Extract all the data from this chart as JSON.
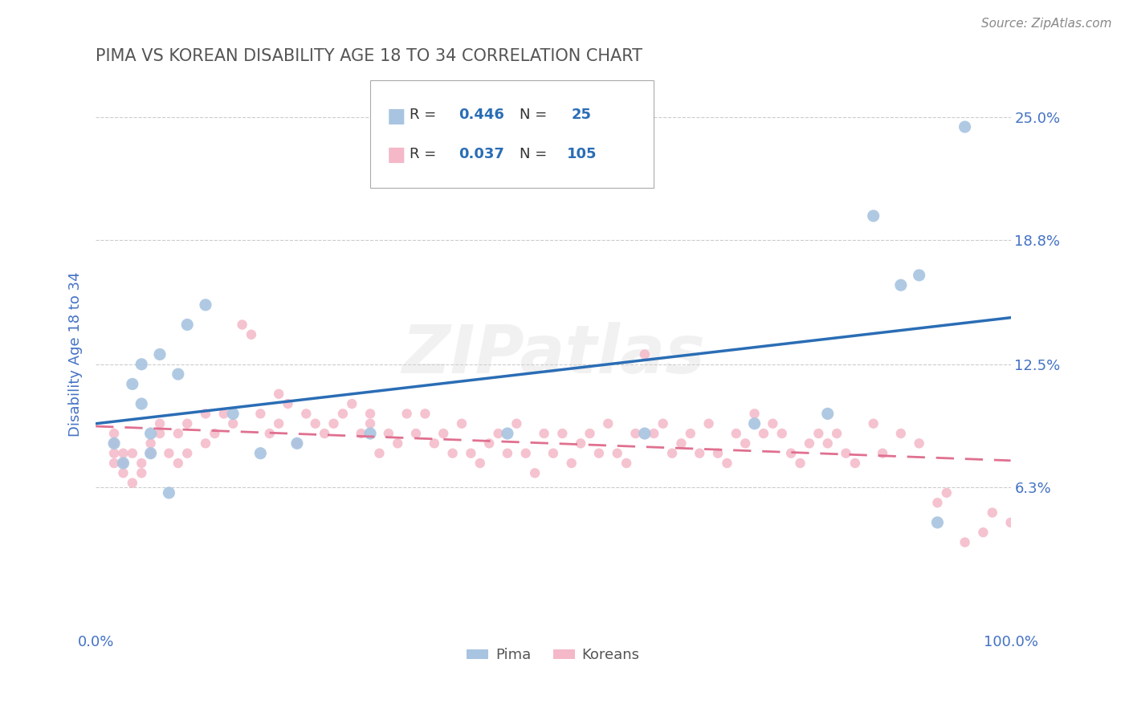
{
  "title": "PIMA VS KOREAN DISABILITY AGE 18 TO 34 CORRELATION CHART",
  "source_text": "Source: ZipAtlas.com",
  "ylabel": "Disability Age 18 to 34",
  "watermark": "ZIPatlas",
  "xlim": [
    0,
    100
  ],
  "ylim": [
    -1,
    27
  ],
  "yticks": [
    6.3,
    12.5,
    18.8,
    25.0
  ],
  "xticklabels": [
    "0.0%",
    "100.0%"
  ],
  "yticklabels": [
    "6.3%",
    "12.5%",
    "18.8%",
    "25.0%"
  ],
  "pima_color": "#a8c4e0",
  "korean_color": "#f4b8c8",
  "pima_line_color": "#2a6db5",
  "korean_line_color": "#e07090",
  "legend_label1": "Pima",
  "legend_label2": "Koreans",
  "pima_R": "0.446",
  "pima_N": "25",
  "korean_R": "0.037",
  "korean_N": "105",
  "grid_color": "#cccccc",
  "title_color": "#555555",
  "tick_color": "#4472c4",
  "background_color": "#ffffff",
  "pima_points_x": [
    2,
    3,
    4,
    5,
    6,
    7,
    8,
    9,
    10,
    12,
    15,
    18,
    22,
    30,
    45,
    60,
    72,
    80,
    85,
    88,
    90,
    92,
    95,
    5,
    6
  ],
  "pima_points_y": [
    8.5,
    7.5,
    11.5,
    10.5,
    9.0,
    13.0,
    6.0,
    12.0,
    14.5,
    15.5,
    10.0,
    8.0,
    8.5,
    9.0,
    9.0,
    9.0,
    9.5,
    10.0,
    20.0,
    16.5,
    17.0,
    4.5,
    24.5,
    12.5,
    8.0
  ],
  "korean_points_x": [
    2,
    2,
    2,
    3,
    3,
    3,
    4,
    4,
    5,
    5,
    6,
    6,
    7,
    7,
    8,
    9,
    9,
    10,
    10,
    12,
    12,
    13,
    14,
    15,
    16,
    17,
    18,
    19,
    20,
    20,
    21,
    22,
    23,
    24,
    25,
    26,
    27,
    28,
    29,
    30,
    30,
    31,
    32,
    33,
    34,
    35,
    36,
    37,
    38,
    39,
    40,
    41,
    42,
    43,
    44,
    45,
    46,
    47,
    48,
    49,
    50,
    51,
    52,
    53,
    54,
    55,
    56,
    57,
    58,
    59,
    60,
    61,
    62,
    63,
    64,
    65,
    66,
    67,
    68,
    69,
    70,
    71,
    72,
    73,
    74,
    75,
    76,
    77,
    78,
    79,
    80,
    81,
    82,
    83,
    85,
    86,
    88,
    90,
    92,
    93,
    95,
    97,
    98,
    100,
    2
  ],
  "korean_points_y": [
    7.5,
    8.0,
    8.5,
    7.0,
    7.5,
    8.0,
    6.5,
    8.0,
    7.0,
    7.5,
    8.0,
    8.5,
    9.0,
    9.5,
    8.0,
    7.5,
    9.0,
    8.0,
    9.5,
    8.5,
    10.0,
    9.0,
    10.0,
    9.5,
    14.5,
    14.0,
    10.0,
    9.0,
    11.0,
    9.5,
    10.5,
    8.5,
    10.0,
    9.5,
    9.0,
    9.5,
    10.0,
    10.5,
    9.0,
    10.0,
    9.5,
    8.0,
    9.0,
    8.5,
    10.0,
    9.0,
    10.0,
    8.5,
    9.0,
    8.0,
    9.5,
    8.0,
    7.5,
    8.5,
    9.0,
    8.0,
    9.5,
    8.0,
    7.0,
    9.0,
    8.0,
    9.0,
    7.5,
    8.5,
    9.0,
    8.0,
    9.5,
    8.0,
    7.5,
    9.0,
    13.0,
    9.0,
    9.5,
    8.0,
    8.5,
    9.0,
    8.0,
    9.5,
    8.0,
    7.5,
    9.0,
    8.5,
    10.0,
    9.0,
    9.5,
    9.0,
    8.0,
    7.5,
    8.5,
    9.0,
    8.5,
    9.0,
    8.0,
    7.5,
    9.5,
    8.0,
    9.0,
    8.5,
    5.5,
    6.0,
    3.5,
    4.0,
    5.0,
    4.5,
    9.0
  ]
}
